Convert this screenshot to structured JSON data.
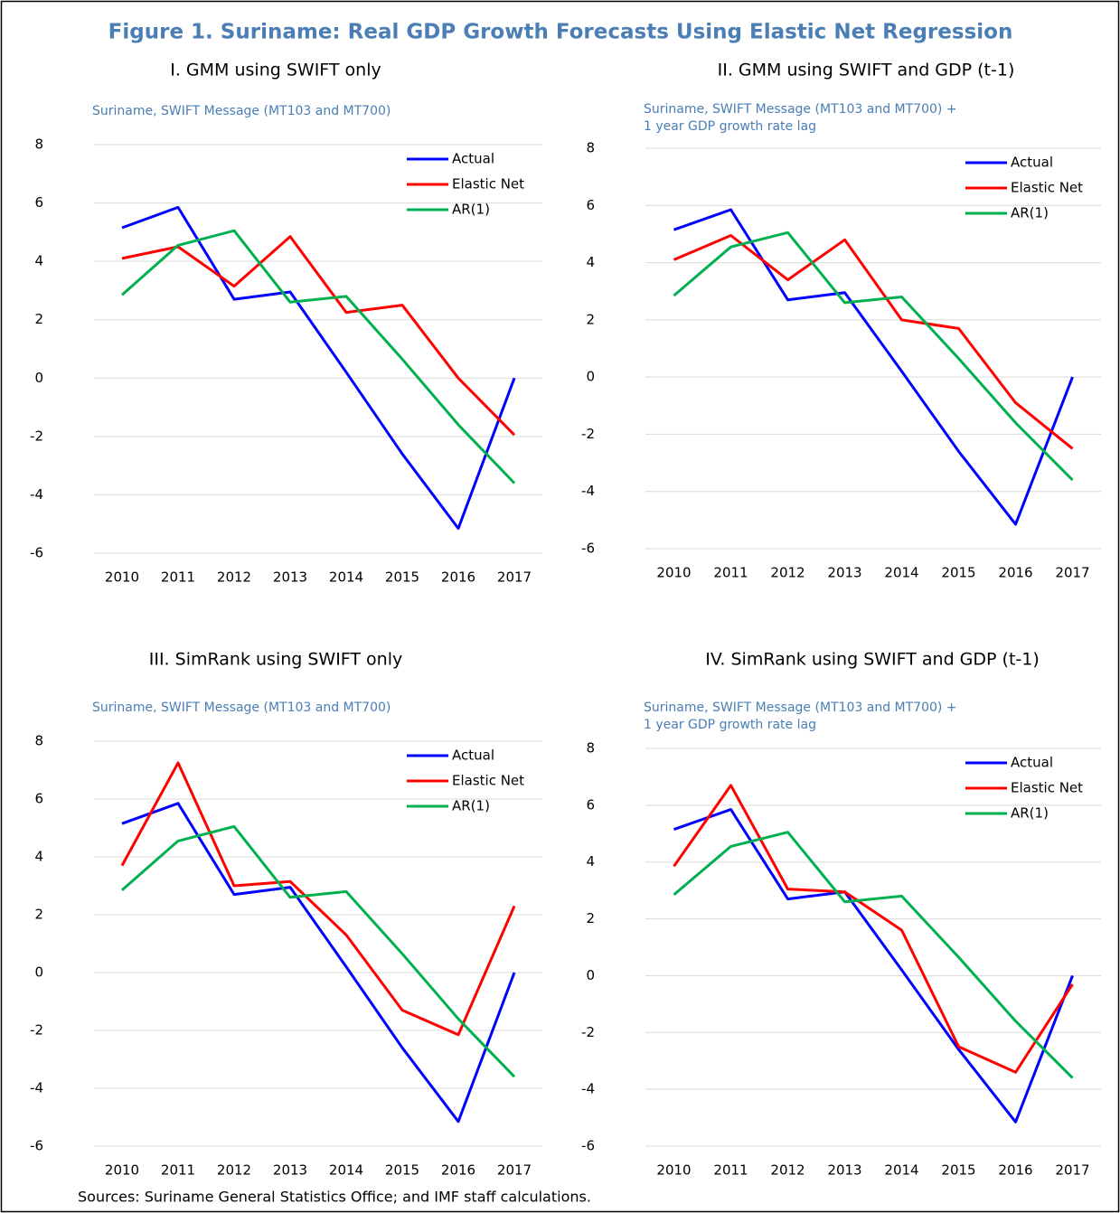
{
  "title": "Figure 1. Suriname: Real GDP Growth Forecasts Using Elastic Net Regression",
  "source": "Sources: Suriname General Statistics Office; and IMF staff calculations.",
  "chart_data": [
    {
      "type": "line",
      "title": "I. GMM using SWIFT only",
      "subtitle": [
        "Suriname, SWIFT Message (MT103 and MT700)"
      ],
      "categories": [
        "2010",
        "2011",
        "2012",
        "2013",
        "2014",
        "2015",
        "2016",
        "2017"
      ],
      "ylim": [
        -6,
        8
      ],
      "yticks": [
        -6,
        -4,
        -2,
        0,
        2,
        4,
        6,
        8
      ],
      "grid": true,
      "legend": "upper right",
      "series": [
        {
          "name": "Actual",
          "color": "#0000ff",
          "values": [
            5.15,
            5.85,
            2.7,
            2.95,
            0.2,
            -2.6,
            -5.15,
            0.0
          ]
        },
        {
          "name": "Elastic Net",
          "color": "#ff0000",
          "values": [
            4.1,
            4.5,
            3.15,
            4.85,
            2.25,
            2.5,
            0.0,
            -1.95
          ]
        },
        {
          "name": "AR(1)",
          "color": "#00b050",
          "values": [
            2.85,
            4.55,
            5.05,
            2.6,
            2.8,
            0.65,
            -1.6,
            -3.6
          ]
        }
      ]
    },
    {
      "type": "line",
      "title": "II. GMM using SWIFT and GDP (t-1)",
      "subtitle": [
        "Suriname, SWIFT Message (MT103 and MT700) +",
        "1 year GDP growth rate lag"
      ],
      "categories": [
        "2010",
        "2011",
        "2012",
        "2013",
        "2014",
        "2015",
        "2016",
        "2017"
      ],
      "ylim": [
        -6,
        8
      ],
      "yticks": [
        -6,
        -4,
        -2,
        0,
        2,
        4,
        6,
        8
      ],
      "grid": true,
      "legend": "upper right",
      "series": [
        {
          "name": "Actual",
          "color": "#0000ff",
          "values": [
            5.15,
            5.85,
            2.7,
            2.95,
            0.2,
            -2.6,
            -5.15,
            0.0
          ]
        },
        {
          "name": "Elastic Net",
          "color": "#ff0000",
          "values": [
            4.1,
            4.95,
            3.4,
            4.8,
            2.0,
            1.7,
            -0.9,
            -2.5
          ]
        },
        {
          "name": "AR(1)",
          "color": "#00b050",
          "values": [
            2.85,
            4.55,
            5.05,
            2.6,
            2.8,
            0.65,
            -1.6,
            -3.6
          ]
        }
      ]
    },
    {
      "type": "line",
      "title": "III. SimRank using SWIFT only",
      "subtitle": [
        "Suriname, SWIFT Message (MT103 and MT700)"
      ],
      "categories": [
        "2010",
        "2011",
        "2012",
        "2013",
        "2014",
        "2015",
        "2016",
        "2017"
      ],
      "ylim": [
        -6,
        8
      ],
      "yticks": [
        -6,
        -4,
        -2,
        0,
        2,
        4,
        6,
        8
      ],
      "grid": true,
      "legend": "upper right",
      "series": [
        {
          "name": "Actual",
          "color": "#0000ff",
          "values": [
            5.15,
            5.85,
            2.7,
            2.95,
            0.2,
            -2.6,
            -5.15,
            0.0
          ]
        },
        {
          "name": "Elastic Net",
          "color": "#ff0000",
          "values": [
            3.7,
            7.25,
            3.0,
            3.15,
            1.3,
            -1.3,
            -2.15,
            2.3
          ]
        },
        {
          "name": "AR(1)",
          "color": "#00b050",
          "values": [
            2.85,
            4.55,
            5.05,
            2.6,
            2.8,
            0.65,
            -1.6,
            -3.6
          ]
        }
      ]
    },
    {
      "type": "line",
      "title": "IV. SimRank using SWIFT and GDP (t-1)",
      "subtitle": [
        "Suriname, SWIFT Message (MT103 and MT700) +",
        "1 year GDP growth rate lag"
      ],
      "categories": [
        "2010",
        "2011",
        "2012",
        "2013",
        "2014",
        "2015",
        "2016",
        "2017"
      ],
      "ylim": [
        -6,
        8
      ],
      "yticks": [
        -6,
        -4,
        -2,
        0,
        2,
        4,
        6,
        8
      ],
      "grid": true,
      "legend": "upper right",
      "series": [
        {
          "name": "Actual",
          "color": "#0000ff",
          "values": [
            5.15,
            5.85,
            2.7,
            2.95,
            0.2,
            -2.6,
            -5.15,
            0.0
          ]
        },
        {
          "name": "Elastic Net",
          "color": "#ff0000",
          "values": [
            3.85,
            6.7,
            3.05,
            2.95,
            1.6,
            -2.5,
            -3.4,
            -0.3
          ]
        },
        {
          "name": "AR(1)",
          "color": "#00b050",
          "values": [
            2.85,
            4.55,
            5.05,
            2.6,
            2.8,
            0.65,
            -1.6,
            -3.6
          ]
        }
      ]
    }
  ]
}
